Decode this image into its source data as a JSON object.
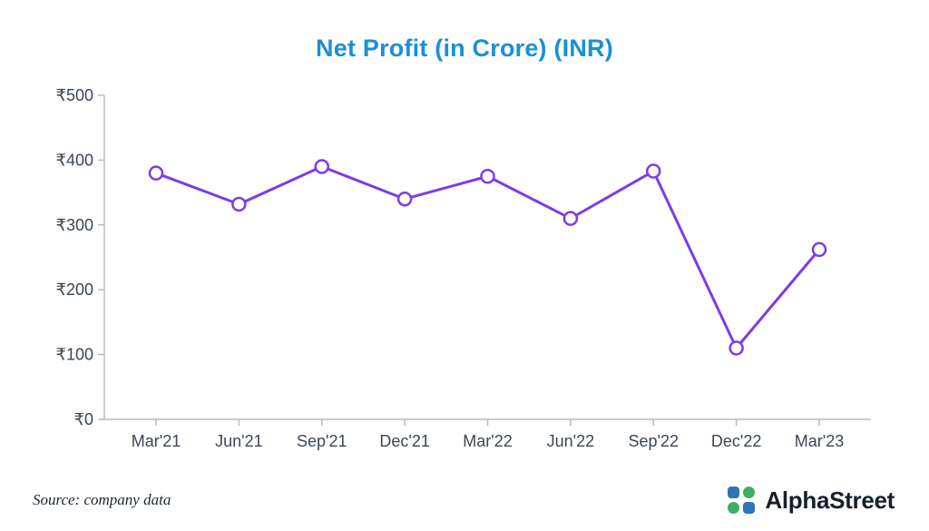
{
  "title": "Net Profit (in Crore) (INR)",
  "source_note": "Source: company data",
  "brand": {
    "name": "AlphaStreet"
  },
  "colors": {
    "title": "#1d8fd6",
    "line": "#7a3de8",
    "marker_fill": "#ffffff",
    "axis": "#b4bcc3",
    "tick_text": "#3b4752",
    "logo_blue": "#2e75b6",
    "logo_green": "#3fae68"
  },
  "chart_data": {
    "type": "line",
    "title": "Net Profit (in Crore) (INR)",
    "categories": [
      "Mar'21",
      "Jun'21",
      "Sep'21",
      "Dec'21",
      "Mar'22",
      "Jun'22",
      "Sep'22",
      "Dec'22",
      "Mar'23"
    ],
    "values": [
      380,
      332,
      390,
      340,
      375,
      310,
      383,
      110,
      262
    ],
    "xlabel": "",
    "ylabel": "",
    "ylim": [
      0,
      500
    ],
    "y_ticks": [
      0,
      100,
      200,
      300,
      400,
      500
    ],
    "y_tick_prefix": "₹",
    "grid": false,
    "legend": false,
    "marker": "open-circle",
    "line_color": "#7a3de8"
  }
}
